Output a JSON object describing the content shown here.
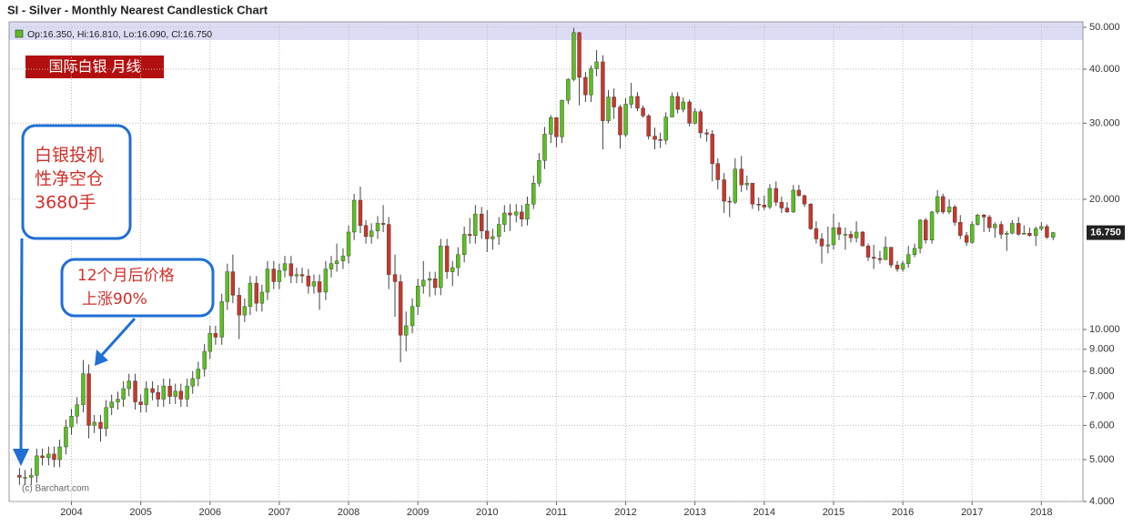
{
  "chart_data": {
    "type": "candlestick",
    "title": "SI - Silver - Monthly Nearest Candlestick Chart",
    "legend_text": "Op:16.350, Hi:16.810, Lo:16.090, Cl:16.750",
    "badge": "国际白银 月线",
    "watermark": "(c) Barchart.com",
    "last_label": "16.750",
    "last_value": 16.75,
    "annotations": [
      {
        "lines": [
          "白银投机",
          "性净空仓",
          "3680手"
        ]
      },
      {
        "lines": [
          "12个月后价格",
          "上涨90%"
        ]
      }
    ],
    "up_color": "#5bbf21",
    "down_color": "#c8372d",
    "log_scale": true,
    "grid": true,
    "xlim": [
      2003.1,
      2018.6
    ],
    "xticks": [
      2004,
      2005,
      2006,
      2007,
      2008,
      2009,
      2010,
      2011,
      2012,
      2013,
      2014,
      2015,
      2016,
      2017,
      2018
    ],
    "ylim": [
      4,
      50
    ],
    "yticks": [
      {
        "value": 4,
        "label": "4.000"
      },
      {
        "value": 5,
        "label": "5.000"
      },
      {
        "value": 6,
        "label": "6.000"
      },
      {
        "value": 7,
        "label": "7.000"
      },
      {
        "value": 8,
        "label": "8.000"
      },
      {
        "value": 9,
        "label": "9.000"
      },
      {
        "value": 10,
        "label": "10.000"
      },
      {
        "value": 20,
        "label": "20.000"
      },
      {
        "value": 30,
        "label": "30.000"
      },
      {
        "value": 40,
        "label": "40.000"
      },
      {
        "value": 50,
        "label": "50.000"
      }
    ],
    "x": [
      2003.25,
      2003.33,
      2003.42,
      2003.5,
      2003.58,
      2003.67,
      2003.75,
      2003.83,
      2003.92,
      2004,
      2004.08,
      2004.17,
      2004.25,
      2004.33,
      2004.42,
      2004.5,
      2004.58,
      2004.67,
      2004.75,
      2004.83,
      2004.92,
      2005,
      2005.08,
      2005.17,
      2005.25,
      2005.33,
      2005.42,
      2005.5,
      2005.58,
      2005.67,
      2005.75,
      2005.83,
      2005.92,
      2006,
      2006.08,
      2006.17,
      2006.25,
      2006.33,
      2006.42,
      2006.5,
      2006.58,
      2006.67,
      2006.75,
      2006.83,
      2006.92,
      2007,
      2007.08,
      2007.17,
      2007.25,
      2007.33,
      2007.42,
      2007.5,
      2007.58,
      2007.67,
      2007.75,
      2007.83,
      2007.92,
      2008,
      2008.08,
      2008.17,
      2008.25,
      2008.33,
      2008.42,
      2008.5,
      2008.58,
      2008.67,
      2008.75,
      2008.83,
      2008.92,
      2009,
      2009.08,
      2009.17,
      2009.25,
      2009.33,
      2009.42,
      2009.5,
      2009.58,
      2009.67,
      2009.75,
      2009.83,
      2009.92,
      2010,
      2010.08,
      2010.17,
      2010.25,
      2010.33,
      2010.42,
      2010.5,
      2010.58,
      2010.67,
      2010.75,
      2010.83,
      2010.92,
      2011,
      2011.08,
      2011.17,
      2011.25,
      2011.33,
      2011.42,
      2011.5,
      2011.58,
      2011.67,
      2011.75,
      2011.83,
      2011.92,
      2012,
      2012.08,
      2012.17,
      2012.25,
      2012.33,
      2012.42,
      2012.5,
      2012.58,
      2012.67,
      2012.75,
      2012.83,
      2012.92,
      2013,
      2013.08,
      2013.17,
      2013.25,
      2013.33,
      2013.42,
      2013.5,
      2013.58,
      2013.67,
      2013.75,
      2013.83,
      2013.92,
      2014,
      2014.08,
      2014.17,
      2014.25,
      2014.33,
      2014.42,
      2014.5,
      2014.58,
      2014.67,
      2014.75,
      2014.83,
      2014.92,
      2015,
      2015.08,
      2015.17,
      2015.25,
      2015.33,
      2015.42,
      2015.5,
      2015.58,
      2015.67,
      2015.75,
      2015.83,
      2015.92,
      2016,
      2016.08,
      2016.17,
      2016.25,
      2016.33,
      2016.42,
      2016.5,
      2016.58,
      2016.67,
      2016.75,
      2016.83,
      2016.92,
      2017,
      2017.08,
      2017.17,
      2017.25,
      2017.33,
      2017.42,
      2017.5,
      2017.58,
      2017.67,
      2017.75,
      2017.83,
      2017.92,
      2018,
      2018.08,
      2018.17
    ],
    "open": [
      4.6,
      4.55,
      4.55,
      4.6,
      5.1,
      5.05,
      5.15,
      5.0,
      5.35,
      5.95,
      6.3,
      6.7,
      7.9,
      6.0,
      6.1,
      5.9,
      6.6,
      6.8,
      6.9,
      7.3,
      7.6,
      6.8,
      6.7,
      7.3,
      7.15,
      6.9,
      7.4,
      7.0,
      7.2,
      6.9,
      7.4,
      7.7,
      8.1,
      8.9,
      9.8,
      9.6,
      11.6,
      13.6,
      12.0,
      10.8,
      11.3,
      12.8,
      11.5,
      12.2,
      13.8,
      12.9,
      13.7,
      14.2,
      13.3,
      13.4,
      13.3,
      12.6,
      12.9,
      12.2,
      13.8,
      14.2,
      14.4,
      14.8,
      16.8,
      19.9,
      17.4,
      16.4,
      16.9,
      17.6,
      17.5,
      13.4,
      12.9,
      9.7,
      10.2,
      11.3,
      12.6,
      13.0,
      13.1,
      12.5,
      15.6,
      13.6,
      13.9,
      14.9,
      16.6,
      16.5,
      18.5,
      16.9,
      16.2,
      16.4,
      17.5,
      18.6,
      18.4,
      18.7,
      18.0,
      19.5,
      21.8,
      24.6,
      28.3,
      30.9,
      27.9,
      33.9,
      37.9,
      48.6,
      38.3,
      34.9,
      40.1,
      41.6,
      30.4,
      34.5,
      32.7,
      28.2,
      33.2,
      34.6,
      32.5,
      31.2,
      28.0,
      27.5,
      27.4,
      31.0,
      34.6,
      32.3,
      33.6,
      30.0,
      31.9,
      28.5,
      28.3,
      24.2,
      22.2,
      19.8,
      19.7,
      23.5,
      21.6,
      21.8,
      19.5,
      19.4,
      19.2,
      21.2,
      19.7,
      19.1,
      18.7,
      21.0,
      20.4,
      19.5,
      17.1,
      16.2,
      15.6,
      15.7,
      17.2,
      16.6,
      16.6,
      16.3,
      16.8,
      15.6,
      14.7,
      14.6,
      14.5,
      15.5,
      14.1,
      13.8,
      14.2,
      14.9,
      15.4,
      17.9,
      16.1,
      18.7,
      20.3,
      18.7,
      19.2,
      17.7,
      16.5,
      15.9,
      17.5,
      18.4,
      18.2,
      17.2,
      17.5,
      16.6,
      16.7,
      17.6,
      16.6,
      16.7,
      16.5,
      17.1,
      17.3,
      16.35
    ],
    "high": [
      4.78,
      4.73,
      4.78,
      5.3,
      5.3,
      5.36,
      5.36,
      5.56,
      6.19,
      6.55,
      6.97,
      8.5,
      8.3,
      6.34,
      6.34,
      6.86,
      7.07,
      7.18,
      7.59,
      7.9,
      7.9,
      7.07,
      7.59,
      7.59,
      7.44,
      7.7,
      7.7,
      7.49,
      7.49,
      7.7,
      8.01,
      8.42,
      9.26,
      10.2,
      10.2,
      12.1,
      14.2,
      14.9,
      12.5,
      11.8,
      13.3,
      13.3,
      12.7,
      14.4,
      14.4,
      14.2,
      14.8,
      14.8,
      13.9,
      13.9,
      13.8,
      13.4,
      13.4,
      14.4,
      14.8,
      15.8,
      15.4,
      17.4,
      20.6,
      21.4,
      17.9,
      17.6,
      18.3,
      19.4,
      18.2,
      14.9,
      13.4,
      11.0,
      11.8,
      13.1,
      14.4,
      13.6,
      13.6,
      16.2,
      16.2,
      14.4,
      15.5,
      17.3,
      18.1,
      19.4,
      19.2,
      18.9,
      17.1,
      18.2,
      19.4,
      19.5,
      19.5,
      19.4,
      20.3,
      22.7,
      25.6,
      29.4,
      31.3,
      31.0,
      34.0,
      38.1,
      49.8,
      48.8,
      39.4,
      40.8,
      44.3,
      43.1,
      35.8,
      36.1,
      33.1,
      34.3,
      37.2,
      35.4,
      33.0,
      31.5,
      29.3,
      28.5,
      31.8,
      35.3,
      35.4,
      34.4,
      34.0,
      32.5,
      32.3,
      29.1,
      28.9,
      24.9,
      23.0,
      20.3,
      24.9,
      25.2,
      22.7,
      21.8,
      20.2,
      20.4,
      21.7,
      22.0,
      20.3,
      19.7,
      21.6,
      21.6,
      20.5,
      19.6,
      17.8,
      16.7,
      17.3,
      18.5,
      17.7,
      17.2,
      16.9,
      17.8,
      16.9,
      15.8,
      15.7,
      15.2,
      16.4,
      15.5,
      14.4,
      14.4,
      15.6,
      15.8,
      18.0,
      18.1,
      18.8,
      21.0,
      20.6,
      20.0,
      19.4,
      18.4,
      16.8,
      17.8,
      18.5,
      18.5,
      18.4,
      17.7,
      17.8,
      16.9,
      17.9,
      18.2,
      17.4,
      17.2,
      17.3,
      17.7,
      17.5,
      16.81
    ],
    "low": [
      4.37,
      4.37,
      4.37,
      4.42,
      4.85,
      4.85,
      4.8,
      4.8,
      5.14,
      5.71,
      6.05,
      6.43,
      5.6,
      5.76,
      5.5,
      5.66,
      6.34,
      6.53,
      6.62,
      7.01,
      6.53,
      6.43,
      6.43,
      6.86,
      6.62,
      6.62,
      6.72,
      6.72,
      6.62,
      6.62,
      7.1,
      7.39,
      7.78,
      8.54,
      9.22,
      9.22,
      11.1,
      11.5,
      9.5,
      10.4,
      10.8,
      11.0,
      11.0,
      11.7,
      12.4,
      12.4,
      13.2,
      12.8,
      12.8,
      12.8,
      12.1,
      12.1,
      11.1,
      11.7,
      13.2,
      13.6,
      13.8,
      14.2,
      16.1,
      16.7,
      15.8,
      15.8,
      16.2,
      16.8,
      12.4,
      10.7,
      8.4,
      8.9,
      9.8,
      10.8,
      12.1,
      11.9,
      12.0,
      12.0,
      13.1,
      12.6,
      13.3,
      14.3,
      15.8,
      15.8,
      16.2,
      15.1,
      15.3,
      15.7,
      16.8,
      16.9,
      17.7,
      17.3,
      17.4,
      19.0,
      21.4,
      23.5,
      27.0,
      26.4,
      27.0,
      33.2,
      37.5,
      33.0,
      33.6,
      33.6,
      38.5,
      26.1,
      30.0,
      30.7,
      26.2,
      27.9,
      32.5,
      32.0,
      30.9,
      27.5,
      26.1,
      26.3,
      26.8,
      31.0,
      31.6,
      31.8,
      29.5,
      29.8,
      27.7,
      27.2,
      22.0,
      21.1,
      18.6,
      18.2,
      19.5,
      20.8,
      21.0,
      19.0,
      18.8,
      18.9,
      19.0,
      19.3,
      18.6,
      18.6,
      18.6,
      20.3,
      19.2,
      17.0,
      15.8,
      14.2,
      15.0,
      15.3,
      16.1,
      15.3,
      15.9,
      15.9,
      15.6,
      14.4,
      13.8,
      14.2,
      14.5,
      13.9,
      13.6,
      13.6,
      13.9,
      14.7,
      15.0,
      15.8,
      15.8,
      18.5,
      18.5,
      18.5,
      17.4,
      16.2,
      15.6,
      15.8,
      17.4,
      16.8,
      16.8,
      16.3,
      16.2,
      15.2,
      16.6,
      16.5,
      16.6,
      16.4,
      15.6,
      16.9,
      16.2,
      16.09
    ],
    "close": [
      4.55,
      4.55,
      4.6,
      5.1,
      5.05,
      5.15,
      5.0,
      5.35,
      5.95,
      6.3,
      6.7,
      7.9,
      6.0,
      6.1,
      5.9,
      6.6,
      6.8,
      6.9,
      7.3,
      7.6,
      6.8,
      6.7,
      7.3,
      7.15,
      6.9,
      7.4,
      7.0,
      7.2,
      6.9,
      7.4,
      7.7,
      8.1,
      8.9,
      9.8,
      9.6,
      11.6,
      13.6,
      12.0,
      10.8,
      11.3,
      12.8,
      11.5,
      12.2,
      13.8,
      12.9,
      13.7,
      14.2,
      13.3,
      13.4,
      13.3,
      12.6,
      12.9,
      12.2,
      13.8,
      14.2,
      14.4,
      14.8,
      16.8,
      19.9,
      17.4,
      16.4,
      16.9,
      17.6,
      17.5,
      13.4,
      12.9,
      9.7,
      10.2,
      11.3,
      12.6,
      13.0,
      13.1,
      12.5,
      15.6,
      13.6,
      13.9,
      14.9,
      16.6,
      16.5,
      18.5,
      16.9,
      16.2,
      16.4,
      17.5,
      18.6,
      18.4,
      18.7,
      18.0,
      19.5,
      21.8,
      24.6,
      28.3,
      30.9,
      27.9,
      33.9,
      37.9,
      48.6,
      38.3,
      34.9,
      40.1,
      41.6,
      30.4,
      34.5,
      32.7,
      28.2,
      33.2,
      34.6,
      32.5,
      31.2,
      28.0,
      27.5,
      27.4,
      31.0,
      34.6,
      32.3,
      33.6,
      30.0,
      31.9,
      28.5,
      28.3,
      24.2,
      22.2,
      19.8,
      19.7,
      23.5,
      21.6,
      21.8,
      19.5,
      19.4,
      19.2,
      21.2,
      19.7,
      19.1,
      18.7,
      21.0,
      20.4,
      19.5,
      17.1,
      16.2,
      15.6,
      15.7,
      17.2,
      16.6,
      16.6,
      16.3,
      16.8,
      15.6,
      14.7,
      14.6,
      14.5,
      15.5,
      14.1,
      13.8,
      14.2,
      14.9,
      15.4,
      17.9,
      16.1,
      18.7,
      20.3,
      18.7,
      19.2,
      17.7,
      16.5,
      15.9,
      17.5,
      18.4,
      18.2,
      17.2,
      17.5,
      16.6,
      16.7,
      17.6,
      16.6,
      16.7,
      16.5,
      17.1,
      17.3,
      16.35,
      16.75
    ]
  }
}
